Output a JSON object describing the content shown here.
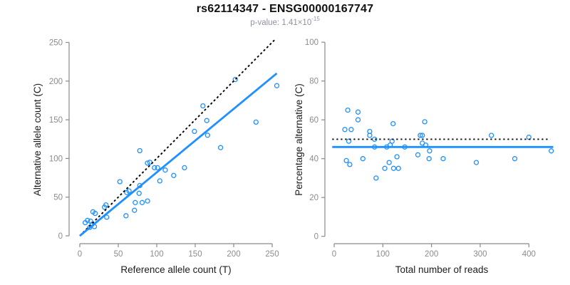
{
  "header": {
    "title": "rs62114347 - ENSG00000167747",
    "pvalue_label": "p-value: ",
    "pvalue_base": "1.41×10",
    "pvalue_exponent": "-15"
  },
  "colors": {
    "points": "#1E90FF",
    "fit_line": "#1E90FF",
    "reference_line": "#000000",
    "axis": "#8a8a8a",
    "tick_labels": "#8c8c8c",
    "axis_title": "#1c1c1c",
    "title": "#111111",
    "subtitle": "#8d93a3"
  },
  "chart_data": [
    {
      "id": "allele-counts",
      "type": "scatter",
      "xlabel": "Reference allele count (T)",
      "ylabel": "Alternative allele count (C)",
      "xlim": [
        0,
        256
      ],
      "ylim": [
        0,
        256
      ],
      "x_ticks": [
        0,
        50,
        100,
        150,
        200,
        250
      ],
      "y_ticks": [
        0,
        50,
        100,
        150,
        200,
        250
      ],
      "grid": false,
      "marker": "open-circle",
      "points": [
        [
          7,
          17
        ],
        [
          10,
          20
        ],
        [
          13,
          11
        ],
        [
          14,
          19
        ],
        [
          16,
          15
        ],
        [
          17,
          31
        ],
        [
          19,
          12
        ],
        [
          20,
          29
        ],
        [
          32,
          37
        ],
        [
          34,
          40
        ],
        [
          35,
          24
        ],
        [
          52,
          70
        ],
        [
          60,
          26
        ],
        [
          61,
          56
        ],
        [
          64,
          58
        ],
        [
          71,
          33
        ],
        [
          72,
          43
        ],
        [
          77,
          55
        ],
        [
          78,
          65
        ],
        [
          78,
          110
        ],
        [
          81,
          43
        ],
        [
          88,
          45
        ],
        [
          88,
          94
        ],
        [
          91,
          95
        ],
        [
          97,
          88
        ],
        [
          101,
          88
        ],
        [
          104,
          71
        ],
        [
          111,
          85
        ],
        [
          122,
          78
        ],
        [
          136,
          88
        ],
        [
          149,
          135
        ],
        [
          160,
          168
        ],
        [
          165,
          149
        ],
        [
          166,
          130
        ],
        [
          183,
          114
        ],
        [
          202,
          202
        ],
        [
          229,
          147
        ],
        [
          256,
          194
        ]
      ],
      "lines": [
        {
          "name": "identity-line",
          "style": "dashed",
          "color": "#000000",
          "from": [
            0,
            0
          ],
          "to": [
            253,
            253
          ],
          "description": "y = x"
        },
        {
          "name": "fit-line",
          "style": "solid",
          "color": "#1E90FF",
          "from": [
            0,
            0
          ],
          "to": [
            256,
            210
          ],
          "slope": 0.82
        }
      ]
    },
    {
      "id": "percentage-vs-reads",
      "type": "scatter",
      "xlabel": "Total number of reads",
      "ylabel": "Percentage alternative (C)",
      "xlim": [
        0,
        450
      ],
      "ylim": [
        0,
        100
      ],
      "x_ticks": [
        0,
        100,
        200,
        300,
        400
      ],
      "y_ticks": [
        0,
        20,
        40,
        60,
        80,
        100
      ],
      "grid": false,
      "marker": "open-circle",
      "points": [
        [
          22,
          55
        ],
        [
          25,
          39
        ],
        [
          28,
          65
        ],
        [
          30,
          49
        ],
        [
          32,
          37
        ],
        [
          35,
          55
        ],
        [
          49,
          64
        ],
        [
          49,
          60
        ],
        [
          59,
          40
        ],
        [
          73,
          54
        ],
        [
          73,
          52
        ],
        [
          83,
          50
        ],
        [
          83,
          46
        ],
        [
          86,
          30
        ],
        [
          104,
          35
        ],
        [
          108,
          46
        ],
        [
          113,
          38
        ],
        [
          115,
          47
        ],
        [
          119,
          49
        ],
        [
          121,
          58
        ],
        [
          122,
          35
        ],
        [
          129,
          41
        ],
        [
          132,
          35
        ],
        [
          145,
          46
        ],
        [
          172,
          42
        ],
        [
          177,
          52
        ],
        [
          181,
          52
        ],
        [
          181,
          48
        ],
        [
          186,
          59
        ],
        [
          188,
          47
        ],
        [
          196,
          44
        ],
        [
          195,
          40
        ],
        [
          224,
          40
        ],
        [
          292,
          38
        ],
        [
          323,
          52
        ],
        [
          371,
          40
        ],
        [
          400,
          51
        ],
        [
          446,
          44
        ]
      ],
      "lines": [
        {
          "name": "null-line",
          "style": "dotted",
          "color": "#000000",
          "y": 50,
          "from_x": -4,
          "to_x": 444,
          "description": "50% expected"
        },
        {
          "name": "mean-line",
          "style": "solid",
          "color": "#1E90FF",
          "y": 46,
          "from_x": -4,
          "to_x": 450
        }
      ]
    }
  ]
}
